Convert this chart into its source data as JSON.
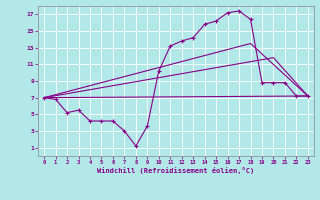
{
  "xlabel": "Windchill (Refroidissement éolien,°C)",
  "background_color": "#b2e8e8",
  "grid_color": "#c8c8c8",
  "line_color": "#880088",
  "x_min": 0,
  "x_max": 23,
  "y_min": 1,
  "y_max": 17,
  "y_ticks": [
    1,
    3,
    5,
    7,
    9,
    11,
    13,
    15,
    17
  ],
  "x_ticks": [
    0,
    1,
    2,
    3,
    4,
    5,
    6,
    7,
    8,
    9,
    10,
    11,
    12,
    13,
    14,
    15,
    16,
    17,
    18,
    19,
    20,
    21,
    22,
    23
  ],
  "line1_x": [
    0,
    1,
    2,
    3,
    4,
    5,
    6,
    7,
    8,
    9,
    10,
    11,
    12,
    13,
    14,
    15,
    16,
    17,
    18,
    19,
    20,
    21,
    22,
    23
  ],
  "line1_y": [
    7.0,
    6.8,
    5.2,
    5.5,
    4.2,
    4.2,
    4.2,
    3.0,
    1.2,
    3.6,
    10.2,
    13.2,
    13.8,
    14.2,
    15.8,
    16.2,
    17.2,
    17.4,
    16.4,
    8.8,
    8.8,
    8.8,
    7.2,
    7.2
  ],
  "line2_x": [
    0,
    23
  ],
  "line2_y": [
    7.0,
    7.2
  ],
  "line3_x": [
    0,
    18,
    23
  ],
  "line3_y": [
    7.0,
    13.5,
    7.2
  ],
  "line4_x": [
    0,
    20,
    23
  ],
  "line4_y": [
    7.0,
    11.8,
    7.2
  ]
}
